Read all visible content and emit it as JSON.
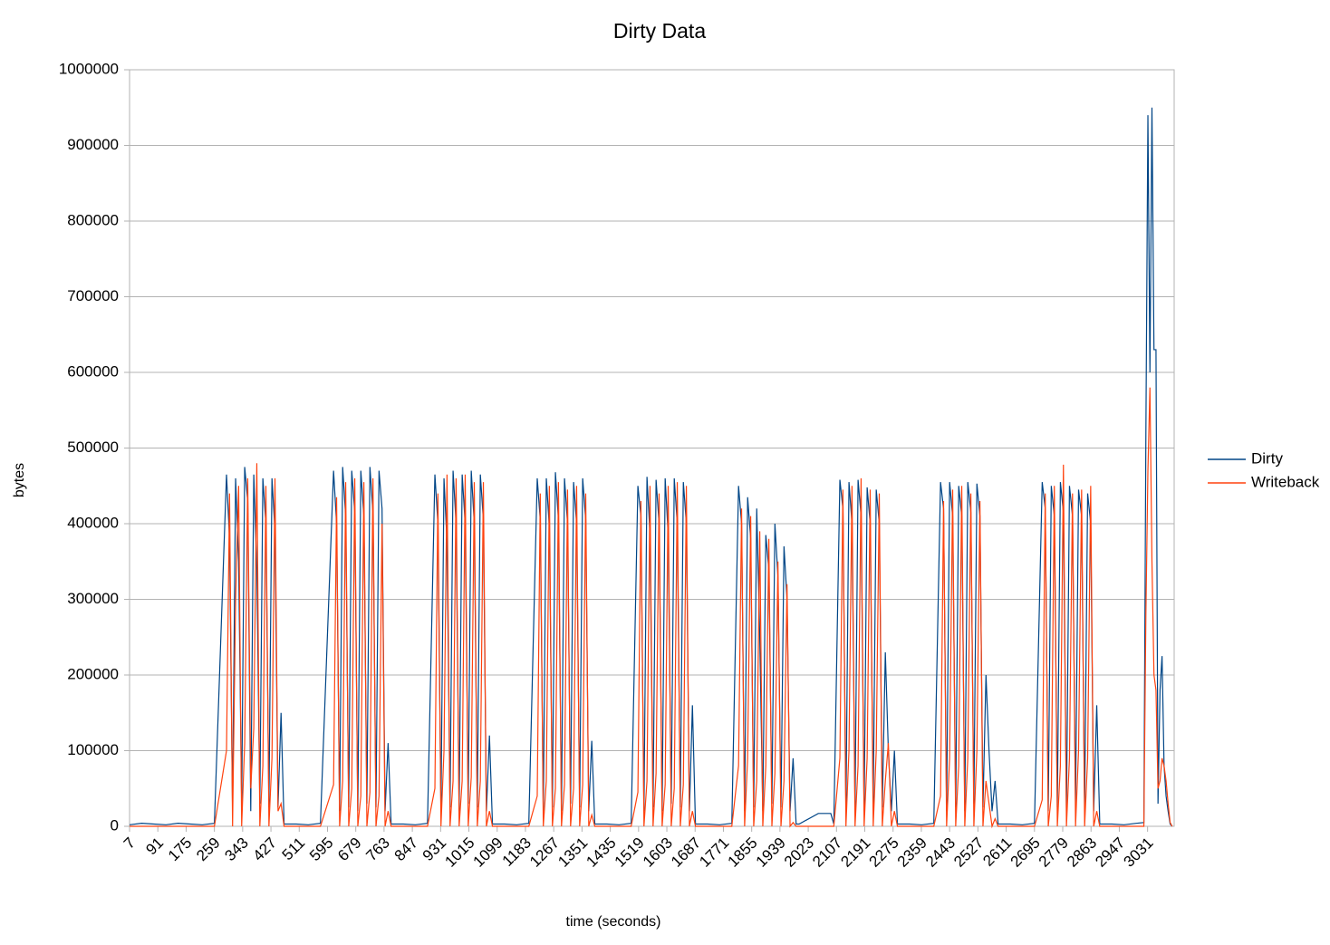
{
  "chart_data": {
    "type": "line",
    "title": "Dirty Data",
    "x_label": "time (seconds)",
    "y_label": "bytes",
    "x": [
      7,
      43,
      79,
      115,
      151,
      187,
      223,
      259,
      295,
      304,
      313,
      322,
      331,
      340,
      349,
      358,
      367,
      376,
      385,
      394,
      403,
      412,
      421,
      430,
      439,
      448,
      457,
      466,
      502,
      538,
      574,
      613,
      622,
      631,
      640,
      649,
      658,
      667,
      676,
      685,
      694,
      703,
      712,
      721,
      730,
      739,
      748,
      757,
      766,
      775,
      784,
      820,
      856,
      892,
      914,
      923,
      932,
      941,
      950,
      959,
      968,
      977,
      986,
      995,
      1004,
      1013,
      1022,
      1031,
      1040,
      1049,
      1058,
      1067,
      1076,
      1085,
      1121,
      1157,
      1193,
      1218,
      1227,
      1236,
      1245,
      1254,
      1263,
      1272,
      1281,
      1290,
      1299,
      1308,
      1317,
      1326,
      1335,
      1344,
      1353,
      1362,
      1371,
      1380,
      1389,
      1425,
      1461,
      1497,
      1517,
      1526,
      1535,
      1544,
      1553,
      1562,
      1571,
      1580,
      1589,
      1598,
      1607,
      1616,
      1625,
      1634,
      1643,
      1652,
      1661,
      1670,
      1679,
      1688,
      1724,
      1760,
      1796,
      1816,
      1825,
      1834,
      1843,
      1852,
      1861,
      1870,
      1879,
      1888,
      1897,
      1906,
      1915,
      1924,
      1933,
      1942,
      1951,
      1960,
      1969,
      1978,
      1987,
      1996,
      2053,
      2090,
      2099,
      2117,
      2126,
      2135,
      2144,
      2153,
      2162,
      2171,
      2180,
      2189,
      2198,
      2207,
      2216,
      2225,
      2234,
      2243,
      2252,
      2261,
      2270,
      2279,
      2288,
      2324,
      2360,
      2396,
      2416,
      2425,
      2434,
      2443,
      2452,
      2461,
      2470,
      2479,
      2488,
      2497,
      2506,
      2515,
      2524,
      2533,
      2542,
      2551,
      2560,
      2569,
      2578,
      2587,
      2623,
      2659,
      2695,
      2718,
      2727,
      2736,
      2745,
      2754,
      2763,
      2772,
      2781,
      2790,
      2799,
      2808,
      2817,
      2826,
      2835,
      2844,
      2853,
      2862,
      2871,
      2880,
      2889,
      2925,
      2961,
      2997,
      3020,
      3026,
      3032,
      3038,
      3044,
      3050,
      3056,
      3062,
      3068,
      3074,
      3080,
      3086,
      3092,
      3098,
      3104
    ],
    "series": [
      {
        "name": "Dirty",
        "color": "#004586",
        "values": [
          2000,
          4000,
          3000,
          2000,
          4000,
          3000,
          2000,
          4000,
          465000,
          380000,
          20000,
          460000,
          350000,
          30000,
          475000,
          430000,
          20000,
          465000,
          340000,
          30000,
          460000,
          400000,
          25000,
          460000,
          390000,
          25000,
          150000,
          3000,
          3000,
          2000,
          4000,
          470000,
          400000,
          20000,
          475000,
          410000,
          25000,
          470000,
          415000,
          20000,
          470000,
          410000,
          30000,
          475000,
          415000,
          25000,
          470000,
          420000,
          20000,
          110000,
          3000,
          3000,
          2000,
          4000,
          465000,
          400000,
          20000,
          460000,
          375000,
          25000,
          470000,
          400000,
          20000,
          465000,
          400000,
          30000,
          470000,
          400000,
          25000,
          465000,
          405000,
          20000,
          120000,
          3000,
          3000,
          2000,
          4000,
          460000,
          405000,
          20000,
          460000,
          395000,
          25000,
          468000,
          405000,
          20000,
          460000,
          400000,
          30000,
          455000,
          400000,
          25000,
          460000,
          405000,
          20000,
          113000,
          3000,
          3000,
          2000,
          4000,
          450000,
          410000,
          20000,
          462000,
          385000,
          25000,
          458000,
          400000,
          20000,
          460000,
          385000,
          30000,
          460000,
          400000,
          25000,
          455000,
          400000,
          20000,
          160000,
          3000,
          3000,
          2000,
          4000,
          450000,
          400000,
          20000,
          435000,
          380000,
          25000,
          420000,
          250000,
          20000,
          385000,
          340000,
          30000,
          400000,
          330000,
          25000,
          370000,
          300000,
          20000,
          90000,
          3000,
          3000,
          17000,
          17000,
          3000,
          458000,
          420000,
          20000,
          455000,
          400000,
          25000,
          458000,
          410000,
          20000,
          448000,
          400000,
          30000,
          445000,
          400000,
          25000,
          230000,
          100000,
          20000,
          100000,
          3000,
          3000,
          2000,
          4000,
          455000,
          420000,
          20000,
          455000,
          410000,
          25000,
          450000,
          410000,
          20000,
          455000,
          415000,
          30000,
          453000,
          410000,
          25000,
          200000,
          100000,
          20000,
          60000,
          3000,
          3000,
          2000,
          4000,
          455000,
          420000,
          20000,
          450000,
          410000,
          25000,
          455000,
          415000,
          20000,
          450000,
          410000,
          30000,
          445000,
          410000,
          25000,
          440000,
          400000,
          20000,
          160000,
          3000,
          3000,
          2000,
          4000,
          5000,
          520000,
          940000,
          600000,
          950000,
          630000,
          630000,
          30000,
          180000,
          225000,
          80000,
          40000,
          20000,
          3000,
          0
        ]
      },
      {
        "name": "Writeback",
        "color": "#ff420e",
        "values": [
          0,
          0,
          0,
          0,
          0,
          0,
          0,
          0,
          100000,
          440000,
          0,
          300000,
          450000,
          0,
          110000,
          460000,
          50000,
          130000,
          480000,
          0,
          80000,
          450000,
          0,
          90000,
          460000,
          20000,
          30000,
          0,
          0,
          0,
          0,
          55000,
          435000,
          0,
          60000,
          455000,
          0,
          50000,
          460000,
          0,
          40000,
          455000,
          0,
          45000,
          460000,
          0,
          40000,
          400000,
          0,
          20000,
          0,
          0,
          0,
          0,
          50000,
          440000,
          0,
          100000,
          465000,
          0,
          60000,
          460000,
          0,
          60000,
          465000,
          0,
          65000,
          455000,
          0,
          60000,
          455000,
          0,
          20000,
          0,
          0,
          0,
          0,
          40000,
          440000,
          0,
          60000,
          450000,
          0,
          50000,
          455000,
          0,
          55000,
          445000,
          0,
          50000,
          450000,
          0,
          55000,
          440000,
          0,
          15000,
          0,
          0,
          0,
          0,
          45000,
          430000,
          0,
          60000,
          450000,
          0,
          70000,
          440000,
          0,
          55000,
          450000,
          0,
          50000,
          455000,
          0,
          55000,
          450000,
          0,
          20000,
          0,
          0,
          0,
          0,
          80000,
          420000,
          0,
          90000,
          410000,
          0,
          60000,
          390000,
          0,
          80000,
          380000,
          0,
          70000,
          350000,
          0,
          60000,
          320000,
          0,
          5000,
          0,
          0,
          0,
          0,
          0,
          90000,
          445000,
          0,
          100000,
          450000,
          0,
          80000,
          460000,
          0,
          90000,
          445000,
          0,
          100000,
          440000,
          0,
          60000,
          110000,
          0,
          20000,
          0,
          0,
          0,
          0,
          40000,
          430000,
          0,
          90000,
          445000,
          0,
          80000,
          450000,
          0,
          90000,
          440000,
          0,
          100000,
          430000,
          0,
          60000,
          30000,
          0,
          10000,
          0,
          0,
          0,
          0,
          35000,
          440000,
          0,
          40000,
          450000,
          0,
          80000,
          478000,
          0,
          90000,
          440000,
          0,
          100000,
          445000,
          0,
          90000,
          450000,
          0,
          20000,
          0,
          0,
          0,
          0,
          0,
          280000,
          470000,
          580000,
          350000,
          200000,
          180000,
          50000,
          60000,
          90000,
          80000,
          60000,
          30000,
          5000,
          0
        ]
      }
    ],
    "xlim": [
      7,
      3110
    ],
    "xticks": [
      7,
      91,
      175,
      259,
      343,
      427,
      511,
      595,
      679,
      763,
      847,
      931,
      1015,
      1099,
      1183,
      1267,
      1351,
      1435,
      1519,
      1603,
      1687,
      1771,
      1855,
      1939,
      2023,
      2107,
      2191,
      2275,
      2359,
      2443,
      2527,
      2611,
      2695,
      2779,
      2863,
      2947,
      3031
    ],
    "ylim": [
      0,
      1000000
    ],
    "yticks": [
      0,
      100000,
      200000,
      300000,
      400000,
      500000,
      600000,
      700000,
      800000,
      900000,
      1000000
    ],
    "grid": true,
    "legend": "right"
  }
}
